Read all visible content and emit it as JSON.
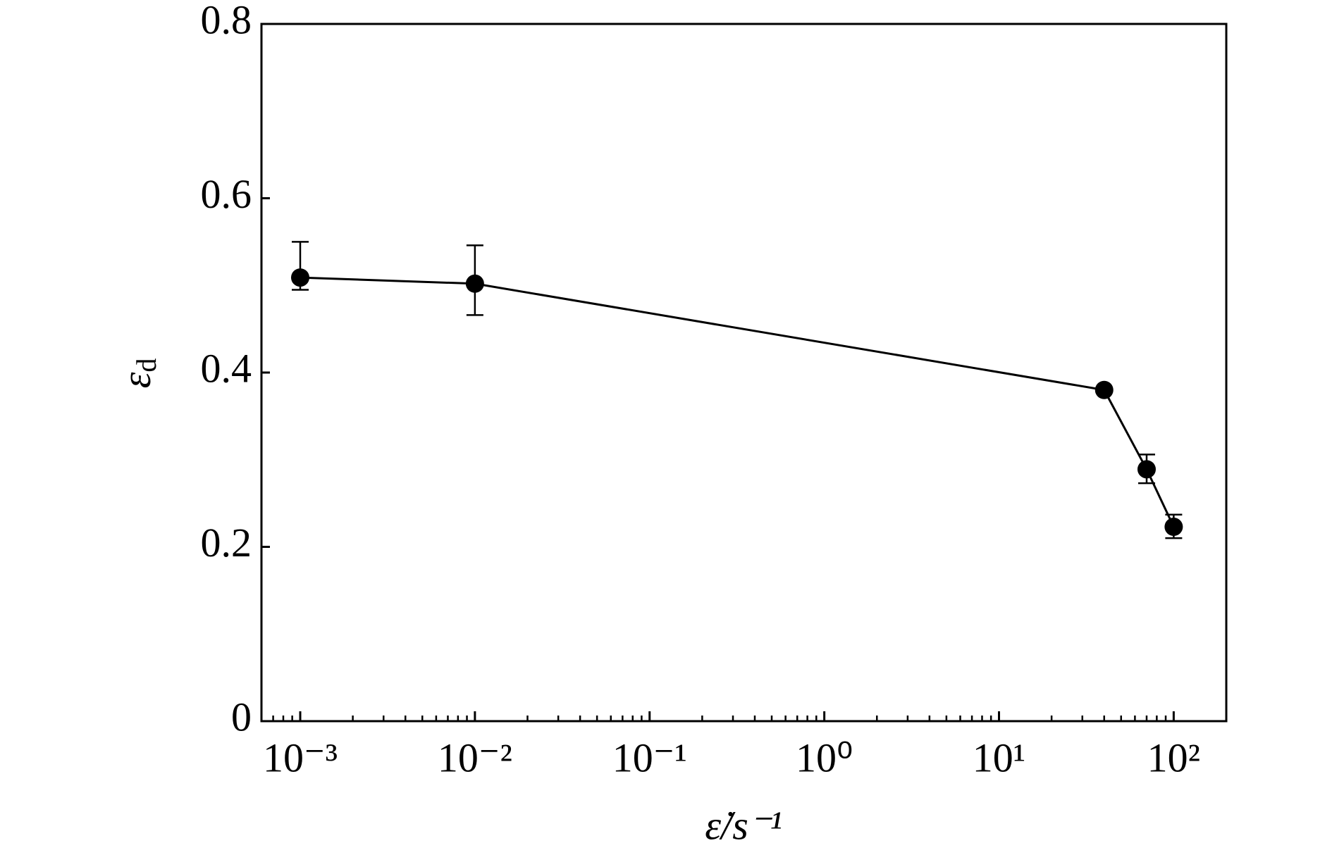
{
  "chart_data": {
    "type": "line",
    "xlabel": "ε̇/s⁻¹",
    "ylabel": "ε",
    "ylabel_subscript": "d",
    "x": [
      0.001,
      0.01,
      40,
      70,
      100
    ],
    "series": [
      {
        "color": "#000000",
        "values": [
          0.509,
          0.502,
          0.38,
          0.289,
          0.223
        ],
        "errors_plus": [
          0.041,
          0.044,
          null,
          0.017,
          0.014
        ],
        "errors_minus": [
          0.014,
          0.036,
          null,
          0.016,
          0.013
        ]
      }
    ],
    "xscale": "log",
    "xlim": [
      0.0006,
      200
    ],
    "xticks": [
      {
        "value": 0.001,
        "label": "10⁻³"
      },
      {
        "value": 0.01,
        "label": "10⁻²"
      },
      {
        "value": 0.1,
        "label": "10⁻¹"
      },
      {
        "value": 1,
        "label": "10⁰"
      },
      {
        "value": 10,
        "label": "10¹"
      },
      {
        "value": 100,
        "label": "10²"
      }
    ],
    "ylim": [
      0,
      0.8
    ],
    "yticks": [
      0,
      0.2,
      0.4,
      0.6,
      0.8
    ],
    "minor_ticks": true,
    "grid": false
  }
}
